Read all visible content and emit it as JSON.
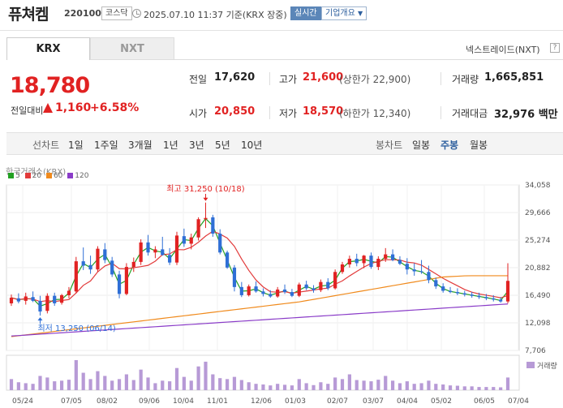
{
  "header": {
    "name": "퓨쳐켐",
    "code": "220100",
    "market": "코스닥",
    "time": "2025.07.10 11:37 기준(KRX 장중)",
    "realtime": "실시간",
    "company_overview": "기업개요",
    "colors": {
      "accent": "#5b86b8",
      "up": "#e12222",
      "down": "#2f6fd6"
    }
  },
  "exchange_tabs": {
    "krx": "KRX",
    "nxt": "NXT",
    "nextrade": "넥스트레이드(NXT)",
    "help": "?"
  },
  "price": {
    "current": "18,780",
    "change_label": "전일대비",
    "change": "1,160",
    "change_pct": "+6.58%"
  },
  "quote": {
    "prev_close_label": "전일",
    "prev_close": "17,620",
    "high_label": "고가",
    "high": "21,600",
    "high_limit": "(상한가 22,900)",
    "volume_label": "거래량",
    "volume": "1,665,851",
    "open_label": "시가",
    "open": "20,850",
    "low_label": "저가",
    "low": "18,570",
    "low_limit": "(하한가 12,340)",
    "amount_label": "거래대금",
    "amount": "32,976 백만"
  },
  "chart_toolbar": {
    "line_chart": "선차트",
    "periods": [
      "1일",
      "1주일",
      "3개월",
      "1년",
      "3년",
      "5년",
      "10년"
    ],
    "candle_chart": "봉차트",
    "candle_periods": [
      "일봉",
      "주봉",
      "월봉"
    ],
    "active_candle": "주봉"
  },
  "chart_data": {
    "type": "candlestick",
    "source": "한국거래소(KRX)",
    "moving_averages": [
      {
        "name": "5",
        "color": "#22a022"
      },
      {
        "name": "20",
        "color": "#e23b3b"
      },
      {
        "name": "60",
        "color": "#f08a1c"
      },
      {
        "name": "120",
        "color": "#8a3cc8"
      }
    ],
    "y_ticks": [
      "34,058",
      "29,666",
      "25,274",
      "20,882",
      "16,490",
      "12,098",
      "7,706"
    ],
    "y_tick_values": [
      34058,
      29666,
      25274,
      20882,
      16490,
      12098,
      7706
    ],
    "x_ticks": [
      "05/24",
      "07/05",
      "08/02",
      "09/06",
      "10/04",
      "11/01",
      "12/06",
      "01/03",
      "02/07",
      "03/07",
      "04/04",
      "05/02",
      "06/05",
      "07/04"
    ],
    "high_annotation": "최고 31,250 (10/18)",
    "low_annotation": "최저 13,250 (06/14)",
    "volume_label": "거래량",
    "candles": [
      {
        "o": 15200,
        "h": 16600,
        "l": 14800,
        "c": 16100,
        "v": 0.35
      },
      {
        "o": 16000,
        "h": 16800,
        "l": 15200,
        "c": 15500,
        "v": 0.25
      },
      {
        "o": 15600,
        "h": 16900,
        "l": 15000,
        "c": 16300,
        "v": 0.22
      },
      {
        "o": 16200,
        "h": 17100,
        "l": 15400,
        "c": 15600,
        "v": 0.2
      },
      {
        "o": 15600,
        "h": 16400,
        "l": 13250,
        "c": 13900,
        "v": 0.45
      },
      {
        "o": 14000,
        "h": 16800,
        "l": 13600,
        "c": 16400,
        "v": 0.4
      },
      {
        "o": 16400,
        "h": 16900,
        "l": 14800,
        "c": 15200,
        "v": 0.28
      },
      {
        "o": 15300,
        "h": 16700,
        "l": 15000,
        "c": 16500,
        "v": 0.3
      },
      {
        "o": 16500,
        "h": 17800,
        "l": 16000,
        "c": 17200,
        "v": 0.33
      },
      {
        "o": 17100,
        "h": 22600,
        "l": 16800,
        "c": 21900,
        "v": 0.95
      },
      {
        "o": 21900,
        "h": 24100,
        "l": 20500,
        "c": 21200,
        "v": 0.55
      },
      {
        "o": 21300,
        "h": 22800,
        "l": 19900,
        "c": 20600,
        "v": 0.35
      },
      {
        "o": 20600,
        "h": 24300,
        "l": 20200,
        "c": 23900,
        "v": 0.6
      },
      {
        "o": 23800,
        "h": 24800,
        "l": 21600,
        "c": 22100,
        "v": 0.45
      },
      {
        "o": 22000,
        "h": 22600,
        "l": 19400,
        "c": 19800,
        "v": 0.3
      },
      {
        "o": 19800,
        "h": 20400,
        "l": 16000,
        "c": 16700,
        "v": 0.35
      },
      {
        "o": 16700,
        "h": 21600,
        "l": 16500,
        "c": 21000,
        "v": 0.5
      },
      {
        "o": 21000,
        "h": 22500,
        "l": 20200,
        "c": 21800,
        "v": 0.32
      },
      {
        "o": 21800,
        "h": 25400,
        "l": 21300,
        "c": 24900,
        "v": 0.65
      },
      {
        "o": 24900,
        "h": 26100,
        "l": 22800,
        "c": 23300,
        "v": 0.4
      },
      {
        "o": 23300,
        "h": 24300,
        "l": 22400,
        "c": 23800,
        "v": 0.22
      },
      {
        "o": 23800,
        "h": 25800,
        "l": 22800,
        "c": 22900,
        "v": 0.3
      },
      {
        "o": 22900,
        "h": 24000,
        "l": 21300,
        "c": 21700,
        "v": 0.28
      },
      {
        "o": 21700,
        "h": 26600,
        "l": 21300,
        "c": 26000,
        "v": 0.7
      },
      {
        "o": 25900,
        "h": 27100,
        "l": 24200,
        "c": 24700,
        "v": 0.42
      },
      {
        "o": 24700,
        "h": 26300,
        "l": 23800,
        "c": 25700,
        "v": 0.3
      },
      {
        "o": 25700,
        "h": 28900,
        "l": 25200,
        "c": 28600,
        "v": 0.75
      },
      {
        "o": 28600,
        "h": 31250,
        "l": 27200,
        "c": 28800,
        "v": 0.9
      },
      {
        "o": 28900,
        "h": 29300,
        "l": 25800,
        "c": 26300,
        "v": 0.5
      },
      {
        "o": 26300,
        "h": 27000,
        "l": 23000,
        "c": 23300,
        "v": 0.38
      },
      {
        "o": 23300,
        "h": 23600,
        "l": 20700,
        "c": 20900,
        "v": 0.35
      },
      {
        "o": 20900,
        "h": 21300,
        "l": 17100,
        "c": 17800,
        "v": 0.42
      },
      {
        "o": 17800,
        "h": 18600,
        "l": 16200,
        "c": 16500,
        "v": 0.32
      },
      {
        "o": 16500,
        "h": 18200,
        "l": 16300,
        "c": 17900,
        "v": 0.25
      },
      {
        "o": 17900,
        "h": 18700,
        "l": 16900,
        "c": 17100,
        "v": 0.2
      },
      {
        "o": 17100,
        "h": 17600,
        "l": 16300,
        "c": 16700,
        "v": 0.18
      },
      {
        "o": 16700,
        "h": 17300,
        "l": 16100,
        "c": 16300,
        "v": 0.15
      },
      {
        "o": 16300,
        "h": 17800,
        "l": 16100,
        "c": 17400,
        "v": 0.2
      },
      {
        "o": 17400,
        "h": 18200,
        "l": 16700,
        "c": 17000,
        "v": 0.17
      },
      {
        "o": 17000,
        "h": 17500,
        "l": 16200,
        "c": 16400,
        "v": 0.15
      },
      {
        "o": 16400,
        "h": 18500,
        "l": 16200,
        "c": 18200,
        "v": 0.35
      },
      {
        "o": 18200,
        "h": 18800,
        "l": 17300,
        "c": 17600,
        "v": 0.22
      },
      {
        "o": 17600,
        "h": 18100,
        "l": 16900,
        "c": 17300,
        "v": 0.16
      },
      {
        "o": 17300,
        "h": 19000,
        "l": 17000,
        "c": 18600,
        "v": 0.25
      },
      {
        "o": 18600,
        "h": 19200,
        "l": 17300,
        "c": 17600,
        "v": 0.2
      },
      {
        "o": 17600,
        "h": 20600,
        "l": 17400,
        "c": 20200,
        "v": 0.4
      },
      {
        "o": 20200,
        "h": 21800,
        "l": 19900,
        "c": 21400,
        "v": 0.35
      },
      {
        "o": 21400,
        "h": 22800,
        "l": 20900,
        "c": 22300,
        "v": 0.5
      },
      {
        "o": 22300,
        "h": 23100,
        "l": 21100,
        "c": 21600,
        "v": 0.32
      },
      {
        "o": 21600,
        "h": 22900,
        "l": 20800,
        "c": 22800,
        "v": 0.3
      },
      {
        "o": 22800,
        "h": 23300,
        "l": 20700,
        "c": 21000,
        "v": 0.28
      },
      {
        "o": 21000,
        "h": 22700,
        "l": 20500,
        "c": 22300,
        "v": 0.33
      },
      {
        "o": 22300,
        "h": 24000,
        "l": 21800,
        "c": 23000,
        "v": 0.45
      },
      {
        "o": 23000,
        "h": 23800,
        "l": 21900,
        "c": 22100,
        "v": 0.3
      },
      {
        "o": 22100,
        "h": 22700,
        "l": 21300,
        "c": 21500,
        "v": 0.22
      },
      {
        "o": 21500,
        "h": 22400,
        "l": 19800,
        "c": 20600,
        "v": 0.28
      },
      {
        "o": 20600,
        "h": 21600,
        "l": 19600,
        "c": 20300,
        "v": 0.2
      },
      {
        "o": 20300,
        "h": 22100,
        "l": 19900,
        "c": 20200,
        "v": 0.22
      },
      {
        "o": 20200,
        "h": 21200,
        "l": 18400,
        "c": 18900,
        "v": 0.3
      },
      {
        "o": 18900,
        "h": 19300,
        "l": 17500,
        "c": 17900,
        "v": 0.2
      },
      {
        "o": 17900,
        "h": 18400,
        "l": 16900,
        "c": 17200,
        "v": 0.18
      },
      {
        "o": 17200,
        "h": 17800,
        "l": 16800,
        "c": 17000,
        "v": 0.15
      },
      {
        "o": 17000,
        "h": 17600,
        "l": 16500,
        "c": 16800,
        "v": 0.14
      },
      {
        "o": 16800,
        "h": 17200,
        "l": 16300,
        "c": 16600,
        "v": 0.12
      },
      {
        "o": 16600,
        "h": 17000,
        "l": 16100,
        "c": 16400,
        "v": 0.12
      },
      {
        "o": 16400,
        "h": 16900,
        "l": 15900,
        "c": 16200,
        "v": 0.1
      },
      {
        "o": 16200,
        "h": 16700,
        "l": 15700,
        "c": 16000,
        "v": 0.1
      },
      {
        "o": 16000,
        "h": 16500,
        "l": 15500,
        "c": 15800,
        "v": 0.1
      },
      {
        "o": 15800,
        "h": 16200,
        "l": 15300,
        "c": 15500,
        "v": 0.09
      },
      {
        "o": 15500,
        "h": 21600,
        "l": 15200,
        "c": 18780,
        "v": 0.4
      }
    ]
  }
}
